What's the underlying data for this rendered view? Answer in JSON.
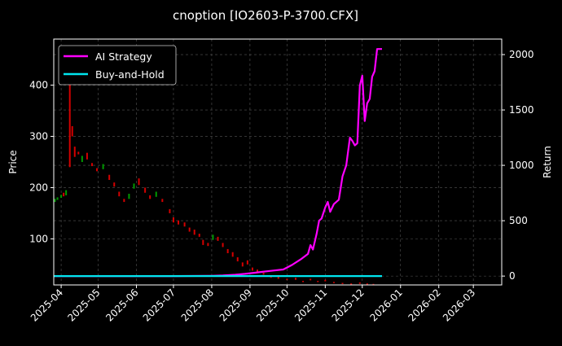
{
  "chart_data": {
    "type": "line",
    "title": "cnoption [IO2603-P-3700.CFX]",
    "xlabel": "",
    "ylabel_left": "Price",
    "ylabel_right": "Return",
    "x_range": [
      "2025-03-26",
      "2026-03-24"
    ],
    "x_ticks": [
      "2025-04",
      "2025-05",
      "2025-06",
      "2025-07",
      "2025-08",
      "2025-09",
      "2025-10",
      "2025-11",
      "2025-12",
      "2026-01",
      "2026-02",
      "2026-03"
    ],
    "x_tick_dates": [
      "2025-04-01",
      "2025-05-01",
      "2025-06-01",
      "2025-07-01",
      "2025-08-01",
      "2025-09-01",
      "2025-10-01",
      "2025-11-01",
      "2025-12-01",
      "2026-01-01",
      "2026-02-01",
      "2026-03-01"
    ],
    "ylim_left": [
      10,
      490
    ],
    "yticks_left": [
      100,
      200,
      300,
      400
    ],
    "ylim_right": [
      -80,
      2140
    ],
    "yticks_right": [
      0,
      500,
      1000,
      1500,
      2000
    ],
    "grid": true,
    "legend_position": "top-left",
    "colors": {
      "ai_strategy": "#ff00ff",
      "buy_and_hold": "#00e5ee",
      "candle_up": "#009a00",
      "candle_down": "#d40000",
      "grid": "#555555"
    },
    "series": [
      {
        "name": "AI Strategy",
        "axis": "right",
        "points": [
          [
            "2025-03-26",
            0
          ],
          [
            "2025-05-01",
            0
          ],
          [
            "2025-06-01",
            0
          ],
          [
            "2025-07-01",
            0
          ],
          [
            "2025-08-01",
            2
          ],
          [
            "2025-08-10",
            5
          ],
          [
            "2025-08-20",
            12
          ],
          [
            "2025-08-28",
            20
          ],
          [
            "2025-09-05",
            30
          ],
          [
            "2025-09-12",
            40
          ],
          [
            "2025-09-20",
            50
          ],
          [
            "2025-09-28",
            60
          ],
          [
            "2025-10-05",
            100
          ],
          [
            "2025-10-12",
            150
          ],
          [
            "2025-10-18",
            200
          ],
          [
            "2025-10-20",
            280
          ],
          [
            "2025-10-22",
            240
          ],
          [
            "2025-10-25",
            380
          ],
          [
            "2025-10-27",
            500
          ],
          [
            "2025-10-29",
            520
          ],
          [
            "2025-11-01",
            620
          ],
          [
            "2025-11-03",
            670
          ],
          [
            "2025-11-05",
            580
          ],
          [
            "2025-11-08",
            650
          ],
          [
            "2025-11-12",
            690
          ],
          [
            "2025-11-15",
            900
          ],
          [
            "2025-11-18",
            1000
          ],
          [
            "2025-11-21",
            1250
          ],
          [
            "2025-11-23",
            1220
          ],
          [
            "2025-11-25",
            1180
          ],
          [
            "2025-11-27",
            1200
          ],
          [
            "2025-11-29",
            1720
          ],
          [
            "2025-12-01",
            1810
          ],
          [
            "2025-12-03",
            1400
          ],
          [
            "2025-12-05",
            1560
          ],
          [
            "2025-12-07",
            1600
          ],
          [
            "2025-12-09",
            1800
          ],
          [
            "2025-12-11",
            1850
          ],
          [
            "2025-12-13",
            2050
          ],
          [
            "2025-12-17",
            2050
          ]
        ]
      },
      {
        "name": "Buy-and-Hold",
        "axis": "right",
        "points": [
          [
            "2025-03-26",
            0
          ],
          [
            "2025-12-17",
            0
          ]
        ]
      }
    ],
    "candles_open_close": [
      [
        "2025-03-27",
        172,
        178
      ],
      [
        "2025-03-29",
        176,
        181
      ],
      [
        "2025-04-01",
        180,
        186
      ],
      [
        "2025-04-03",
        190,
        183
      ],
      [
        "2025-04-05",
        185,
        195
      ],
      [
        "2025-04-08",
        460,
        240
      ],
      [
        "2025-04-10",
        320,
        300
      ],
      [
        "2025-04-12",
        280,
        260
      ],
      [
        "2025-04-15",
        270,
        265
      ],
      [
        "2025-04-18",
        250,
        262
      ],
      [
        "2025-04-22",
        268,
        255
      ],
      [
        "2025-04-26",
        248,
        242
      ],
      [
        "2025-04-30",
        238,
        232
      ],
      [
        "2025-05-05",
        236,
        246
      ],
      [
        "2025-05-10",
        225,
        215
      ],
      [
        "2025-05-14",
        210,
        202
      ],
      [
        "2025-05-18",
        192,
        183
      ],
      [
        "2025-05-22",
        178,
        172
      ],
      [
        "2025-05-26",
        178,
        188
      ],
      [
        "2025-05-30",
        198,
        208
      ],
      [
        "2025-06-03",
        218,
        205
      ],
      [
        "2025-06-08",
        200,
        190
      ],
      [
        "2025-06-12",
        185,
        178
      ],
      [
        "2025-06-17",
        182,
        192
      ],
      [
        "2025-06-22",
        178,
        172
      ],
      [
        "2025-06-28",
        158,
        150
      ],
      [
        "2025-07-01",
        142,
        132
      ],
      [
        "2025-07-05",
        136,
        128
      ],
      [
        "2025-07-10",
        132,
        124
      ],
      [
        "2025-07-14",
        122,
        114
      ],
      [
        "2025-07-18",
        118,
        108
      ],
      [
        "2025-07-22",
        110,
        104
      ],
      [
        "2025-07-25",
        98,
        88
      ],
      [
        "2025-07-29",
        92,
        86
      ],
      [
        "2025-08-02",
        98,
        108
      ],
      [
        "2025-08-06",
        104,
        96
      ],
      [
        "2025-08-10",
        92,
        84
      ],
      [
        "2025-08-14",
        80,
        72
      ],
      [
        "2025-08-18",
        74,
        65
      ],
      [
        "2025-08-22",
        64,
        56
      ],
      [
        "2025-08-26",
        54,
        46
      ],
      [
        "2025-08-30",
        58,
        50
      ],
      [
        "2025-09-03",
        44,
        38
      ],
      [
        "2025-09-07",
        40,
        34
      ],
      [
        "2025-09-12",
        34,
        30
      ],
      [
        "2025-09-18",
        28,
        24
      ],
      [
        "2025-09-24",
        26,
        22
      ],
      [
        "2025-10-01",
        22,
        20
      ],
      [
        "2025-10-08",
        24,
        20
      ],
      [
        "2025-10-14",
        18,
        16
      ],
      [
        "2025-10-20",
        22,
        19
      ],
      [
        "2025-10-26",
        18,
        16
      ],
      [
        "2025-11-01",
        20,
        17
      ],
      [
        "2025-11-08",
        16,
        15
      ],
      [
        "2025-11-15",
        14,
        13
      ],
      [
        "2025-11-22",
        13,
        12
      ],
      [
        "2025-11-29",
        15,
        12
      ],
      [
        "2025-12-05",
        13,
        12
      ],
      [
        "2025-12-10",
        12,
        11
      ]
    ]
  }
}
